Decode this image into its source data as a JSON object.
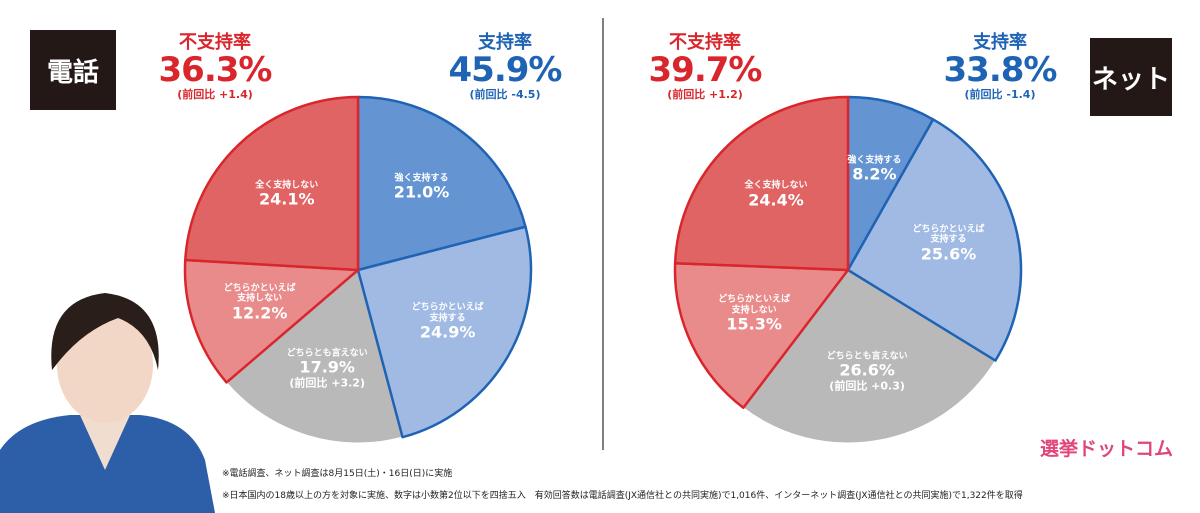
{
  "chart_data": [
    {
      "type": "pie",
      "label": "電話",
      "categories": [
        "強く支持する",
        "どちらかといえば\n支持する",
        "どちらとも言えない",
        "どちらかといえば\n支持しない",
        "全く支持しない"
      ],
      "values": [
        21.0,
        24.9,
        17.9,
        12.2,
        24.1
      ],
      "value_labels": [
        "21.0%",
        "24.9%",
        "17.9%",
        "12.2%",
        "24.1%"
      ],
      "notes": [
        null,
        null,
        "(前回比 +3.2)",
        null,
        null
      ],
      "colors": [
        "#6494d2",
        "#a0bae3",
        "#b9b9b9",
        "#e98b8b",
        "#e06464"
      ],
      "edge_colors": [
        "#1f63b5",
        "#1f63b5",
        null,
        "#d9262c",
        "#d9262c"
      ],
      "totals": [
        {
          "name": "不支持率",
          "value_label": "36.3%",
          "note": "(前回比 +1.4)",
          "color": "#d9262c"
        },
        {
          "name": "支持率",
          "value_label": "45.9%",
          "note": "(前回比 -4.5)",
          "color": "#1f63b5"
        }
      ]
    },
    {
      "type": "pie",
      "label": "ネット",
      "categories": [
        "強く支持する",
        "どちらかといえば\n支持する",
        "どちらとも言えない",
        "どちらかといえば\n支持しない",
        "全く支持しない"
      ],
      "values": [
        8.2,
        25.6,
        26.6,
        15.3,
        24.4
      ],
      "value_labels": [
        "8.2%",
        "25.6%",
        "26.6%",
        "15.3%",
        "24.4%"
      ],
      "notes": [
        null,
        null,
        "(前回比 +0.3)",
        null,
        null
      ],
      "colors": [
        "#6494d2",
        "#a0bae3",
        "#b9b9b9",
        "#e98b8b",
        "#e06464"
      ],
      "edge_colors": [
        "#1f63b5",
        "#1f63b5",
        null,
        "#d9262c",
        "#d9262c"
      ],
      "totals": [
        {
          "name": "不支持率",
          "value_label": "39.7%",
          "note": "(前回比 +1.2)",
          "color": "#d9262c"
        },
        {
          "name": "支持率",
          "value_label": "33.8%",
          "note": "(前回比 -1.4)",
          "color": "#1f63b5"
        }
      ]
    }
  ],
  "footnotes": [
    "※電話調査、ネット調査は8月15日(土)・16日(日)に実施",
    "※日本国内の18歳以上の方を対象に実施、数字は小数第2位以下を四捨五入　有効回答数は電話調査(JX通信社との共同実施)で1,016件、インターネット調査(JX通信社との共同実施)で1,322件を取得"
  ],
  "logo": "選挙ドットコム"
}
